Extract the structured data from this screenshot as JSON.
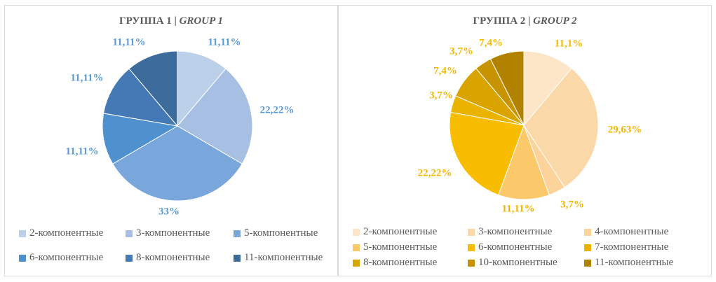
{
  "chart_data": [
    {
      "type": "pie",
      "title": "ГРУППА 1 | ",
      "title_italic": "GROUP 1",
      "label_color": "#5b9bd5",
      "slices": [
        {
          "name": "2-компонентные",
          "value": 11.11,
          "label": "11,11%",
          "color": "#bdd0ea"
        },
        {
          "name": "3-компонентные",
          "value": 22.22,
          "label": "22,22%",
          "color": "#a6bfe3"
        },
        {
          "name": "5-компонентные",
          "value": 33.0,
          "label": "33%",
          "color": "#7aa7db"
        },
        {
          "name": "6-компонентные",
          "value": 11.11,
          "label": "11,11%",
          "color": "#4f90cf"
        },
        {
          "name": "8-компонентные",
          "value": 11.11,
          "label": "11,11%",
          "color": "#4479b5"
        },
        {
          "name": "11-компонентные",
          "value": 11.11,
          "label": "11,11%",
          "color": "#3c6b9c"
        }
      ]
    },
    {
      "type": "pie",
      "title": "ГРУППА 2 | ",
      "title_italic": "GROUP 2",
      "label_color": "#f2b800",
      "slices": [
        {
          "name": "2-компонентные",
          "value": 11.1,
          "label": "11,1%",
          "color": "#fde6c7"
        },
        {
          "name": "3-компонентные",
          "value": 29.63,
          "label": "29,63%",
          "color": "#fbd8a8"
        },
        {
          "name": "4-компонентные",
          "value": 3.7,
          "label": "3,7%",
          "color": "#fcd39a"
        },
        {
          "name": "5-компонентные",
          "value": 11.11,
          "label": "11,11%",
          "color": "#fcc96a"
        },
        {
          "name": "6-компонентные",
          "value": 22.22,
          "label": "22,22%",
          "color": "#f8bd00"
        },
        {
          "name": "7-компонентные",
          "value": 3.7,
          "label": "3,7%",
          "color": "#eab300"
        },
        {
          "name": "8-компонентные",
          "value": 7.4,
          "label": "7,4%",
          "color": "#d9a400"
        },
        {
          "name": "10-компонентные",
          "value": 3.7,
          "label": "3,7%",
          "color": "#c79300"
        },
        {
          "name": "11-компонентные",
          "value": 7.4,
          "label": "7,4%",
          "color": "#b08200"
        }
      ]
    }
  ],
  "legend_text_color": "#595959"
}
